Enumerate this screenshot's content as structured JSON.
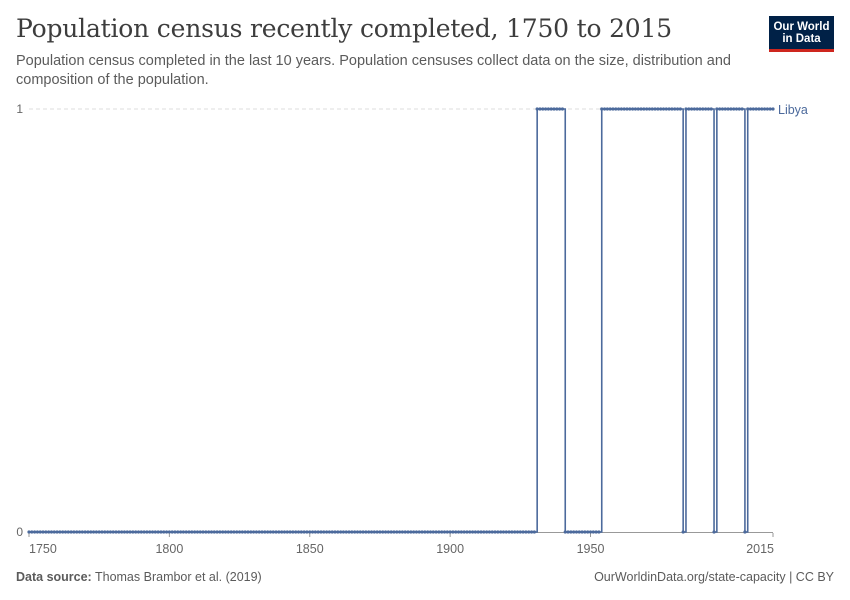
{
  "header": {
    "title": "Population census recently completed, 1750 to 2015",
    "subtitle": "Population census completed in the last 10 years. Population censuses collect data on the size, distribution and composition of the population."
  },
  "logo": {
    "line1": "Our World",
    "line2": "in Data"
  },
  "footer": {
    "source_label": "Data source:",
    "source_text": "Thomas Brambor et al. (2019)",
    "url_text": "OurWorldinData.org/state-capacity | CC BY"
  },
  "colors": {
    "series": "#4c6a9c",
    "grid": "#dddddd",
    "axis": "#999999"
  },
  "chart_data": {
    "type": "line",
    "title": "Population census recently completed, 1750 to 2015",
    "xlabel": "",
    "ylabel": "",
    "xlim": [
      1750,
      2015
    ],
    "ylim": [
      0,
      1
    ],
    "x_ticks": [
      1750,
      1800,
      1850,
      1900,
      1950,
      2015
    ],
    "y_ticks": [
      0,
      1
    ],
    "grid": "horizontal dashed at y=1",
    "legend": "inline label at line end",
    "series": [
      {
        "name": "Libya",
        "step_intervals": [
          {
            "from": 1750,
            "to": 1930,
            "value": 0
          },
          {
            "from": 1931,
            "to": 1940,
            "value": 1
          },
          {
            "from": 1941,
            "to": 1953,
            "value": 0
          },
          {
            "from": 1954,
            "to": 1982,
            "value": 1
          },
          {
            "from": 1983,
            "to": 1983,
            "value": 0
          },
          {
            "from": 1984,
            "to": 1993,
            "value": 1
          },
          {
            "from": 1994,
            "to": 1994,
            "value": 0
          },
          {
            "from": 1995,
            "to": 2004,
            "value": 1
          },
          {
            "from": 2005,
            "to": 2005,
            "value": 0
          },
          {
            "from": 2006,
            "to": 2015,
            "value": 1
          }
        ]
      }
    ]
  }
}
